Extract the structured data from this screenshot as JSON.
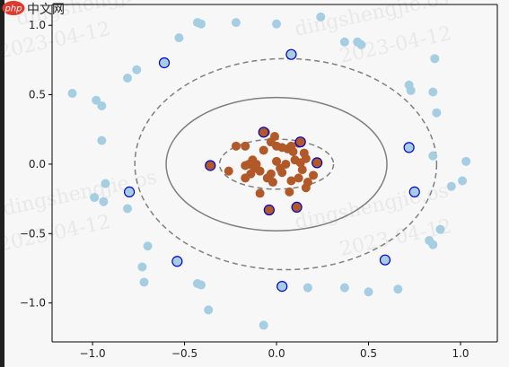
{
  "watermark": {
    "site": "php 中文网",
    "author": "dingshengjie.os",
    "date": "2023-04-12"
  },
  "colors": {
    "outer_points": "#a6cee3",
    "inner_points": "#b15928",
    "support_edge": "#0000cc",
    "contour": "#7f7f7f",
    "axes_bg": "#f7f7f7"
  },
  "chart_data": {
    "type": "scatter",
    "title": "",
    "xlabel": "",
    "ylabel": "",
    "xlim": [
      -1.22,
      1.2
    ],
    "ylim": [
      -1.28,
      1.15
    ],
    "xticks": [
      -1.0,
      -0.5,
      0.0,
      0.5,
      1.0
    ],
    "xtick_labels": [
      "−1.0",
      "−0.5",
      "0.0",
      "0.5",
      "1.0"
    ],
    "yticks": [
      1.0,
      0.5,
      0.0,
      -0.5,
      -1.0
    ],
    "ytick_labels": [
      "1.0",
      "0.5",
      "0.0",
      "−0.5",
      "−1.0"
    ],
    "grid": false,
    "legend": "none",
    "contours": [
      {
        "level": 0,
        "style": "solid",
        "cx": 0.0,
        "cy": 0.0,
        "rx": 0.6,
        "ry": 0.48
      },
      {
        "level": 1,
        "style": "dashed",
        "cx": 0.0,
        "cy": 0.0,
        "rx": 0.31,
        "ry": 0.18
      },
      {
        "level": -1,
        "style": "dashed",
        "cx": 0.05,
        "cy": 0.0,
        "rx": 0.82,
        "ry": 0.76
      }
    ],
    "series": [
      {
        "class": "outer",
        "points": [
          [
            0.24,
            1.06
          ],
          [
            -0.43,
            1.02
          ],
          [
            -0.41,
            1.01
          ],
          [
            -0.22,
            1.02
          ],
          [
            0.0,
            1.01
          ],
          [
            -0.53,
            0.91
          ],
          [
            0.37,
            0.88
          ],
          [
            0.44,
            0.88
          ],
          [
            0.46,
            0.86
          ],
          [
            0.86,
            0.76
          ],
          [
            -0.76,
            0.68
          ],
          [
            -0.81,
            0.62
          ],
          [
            -1.11,
            0.51
          ],
          [
            -0.98,
            0.46
          ],
          [
            -0.95,
            0.42
          ],
          [
            0.72,
            0.57
          ],
          [
            0.73,
            0.53
          ],
          [
            0.85,
            0.52
          ],
          [
            0.87,
            0.37
          ],
          [
            -0.95,
            0.17
          ],
          [
            0.85,
            0.06
          ],
          [
            1.03,
            0.02
          ],
          [
            -0.93,
            -0.14
          ],
          [
            -0.99,
            -0.24
          ],
          [
            -0.94,
            -0.27
          ],
          [
            -0.81,
            -0.32
          ],
          [
            0.95,
            -0.16
          ],
          [
            1.01,
            -0.12
          ],
          [
            0.89,
            -0.47
          ],
          [
            0.83,
            -0.55
          ],
          [
            0.85,
            -0.58
          ],
          [
            -0.7,
            -0.59
          ],
          [
            -0.73,
            -0.74
          ],
          [
            -0.72,
            -0.85
          ],
          [
            -0.43,
            -0.86
          ],
          [
            -0.41,
            -0.87
          ],
          [
            0.17,
            -0.89
          ],
          [
            0.37,
            -0.89
          ],
          [
            0.5,
            -0.92
          ],
          [
            0.66,
            -0.9
          ],
          [
            -0.37,
            -1.05
          ],
          [
            -0.07,
            -1.16
          ]
        ]
      },
      {
        "class": "inner",
        "points": [
          [
            -0.22,
            0.13
          ],
          [
            -0.17,
            0.13
          ],
          [
            -0.06,
            0.23
          ],
          [
            -0.01,
            0.2
          ],
          [
            -0.03,
            0.16
          ],
          [
            0.0,
            0.13
          ],
          [
            0.03,
            0.12
          ],
          [
            0.06,
            0.11
          ],
          [
            0.08,
            0.13
          ],
          [
            0.12,
            0.15
          ],
          [
            0.15,
            0.08
          ],
          [
            -0.07,
            0.1
          ],
          [
            -0.15,
            0.0
          ],
          [
            -0.17,
            -0.01
          ],
          [
            -0.13,
            0.03
          ],
          [
            -0.11,
            0.0
          ],
          [
            -0.09,
            -0.05
          ],
          [
            -0.12,
            -0.03
          ],
          [
            -0.05,
            -0.1
          ],
          [
            -0.03,
            -0.07
          ],
          [
            0.0,
            0.02
          ],
          [
            0.02,
            -0.03
          ],
          [
            0.05,
            0.0
          ],
          [
            0.1,
            0.03
          ],
          [
            0.13,
            0.01
          ],
          [
            0.16,
            0.04
          ],
          [
            0.2,
            -0.08
          ],
          [
            0.17,
            -0.13
          ],
          [
            0.12,
            -0.1
          ],
          [
            0.08,
            -0.12
          ],
          [
            0.07,
            -0.2
          ],
          [
            0.16,
            -0.17
          ],
          [
            0.03,
            -0.06
          ],
          [
            -0.02,
            -0.13
          ],
          [
            -0.09,
            -0.21
          ],
          [
            -0.26,
            -0.05
          ],
          [
            -0.17,
            -0.1
          ],
          [
            -0.14,
            -0.07
          ],
          [
            0.09,
            0.09
          ],
          [
            0.14,
            -0.04
          ]
        ]
      },
      {
        "class": "support_outer",
        "points": [
          [
            -0.61,
            0.73
          ],
          [
            0.08,
            0.79
          ],
          [
            0.72,
            0.12
          ],
          [
            0.75,
            -0.2
          ],
          [
            -0.8,
            -0.2
          ],
          [
            -0.54,
            -0.7
          ],
          [
            0.03,
            -0.88
          ],
          [
            0.59,
            -0.69
          ]
        ]
      },
      {
        "class": "support_inner",
        "points": [
          [
            -0.36,
            -0.01
          ],
          [
            -0.07,
            0.23
          ],
          [
            0.13,
            0.16
          ],
          [
            0.22,
            0.01
          ],
          [
            -0.04,
            -0.33
          ],
          [
            0.11,
            -0.31
          ]
        ]
      }
    ]
  }
}
